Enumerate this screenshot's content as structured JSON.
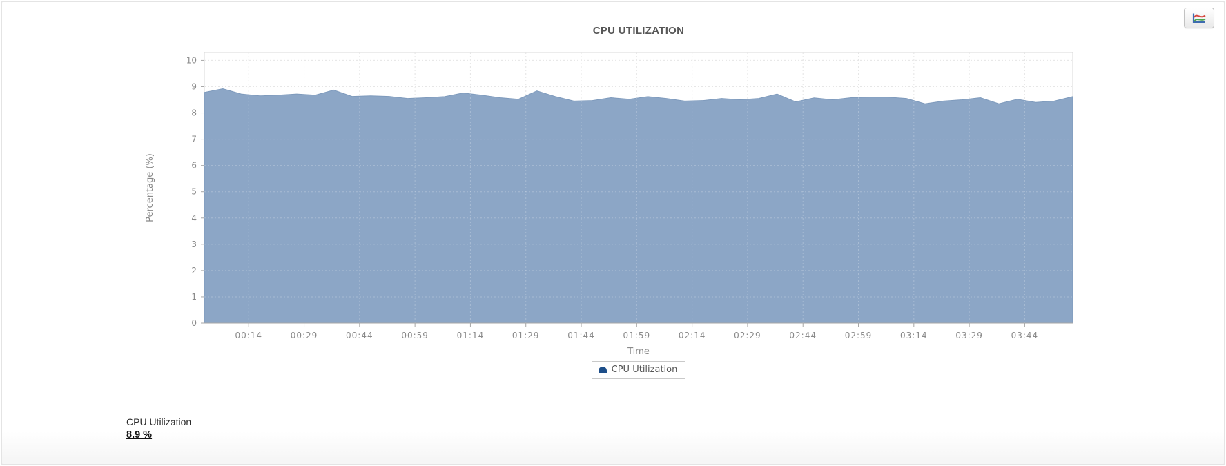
{
  "widget": {
    "title": "CPU UTILIZATION",
    "stats": {
      "label": "CPU Utilization",
      "value": "8.9 %"
    },
    "toolbar": {
      "chart_type_button_icon": "line-chart-icon"
    }
  },
  "chart_data": {
    "type": "area",
    "title": "CPU UTILIZATION",
    "xlabel": "Time",
    "ylabel": "Percentage (%)",
    "ylim": [
      0,
      10.3
    ],
    "y_ticks": [
      0,
      1,
      2,
      3,
      4,
      5,
      6,
      7,
      8,
      9,
      10
    ],
    "x_tick_labels": [
      "00:14",
      "00:29",
      "00:44",
      "00:59",
      "01:14",
      "01:29",
      "01:44",
      "01:59",
      "02:14",
      "02:29",
      "02:44",
      "02:59",
      "03:14",
      "03:29",
      "03:44"
    ],
    "x_range_minutes": [
      2,
      237
    ],
    "grid": true,
    "legend": {
      "position": "bottom",
      "label": "CPU Utilization",
      "marker_color": "#1D4E89"
    },
    "series": [
      {
        "name": "CPU Utilization",
        "fill_color": "#8CA6C6",
        "edge_color": "#7E9ABC",
        "sample_interval_minutes": 5,
        "values": [
          8.78,
          8.92,
          8.72,
          8.65,
          8.68,
          8.72,
          8.68,
          8.87,
          8.63,
          8.65,
          8.63,
          8.55,
          8.58,
          8.62,
          8.76,
          8.68,
          8.58,
          8.52,
          8.84,
          8.62,
          8.45,
          8.47,
          8.58,
          8.52,
          8.62,
          8.55,
          8.45,
          8.47,
          8.55,
          8.5,
          8.55,
          8.72,
          8.42,
          8.57,
          8.5,
          8.58,
          8.6,
          8.6,
          8.55,
          8.35,
          8.45,
          8.5,
          8.58,
          8.35,
          8.52,
          8.4,
          8.45,
          8.62
        ]
      }
    ]
  }
}
